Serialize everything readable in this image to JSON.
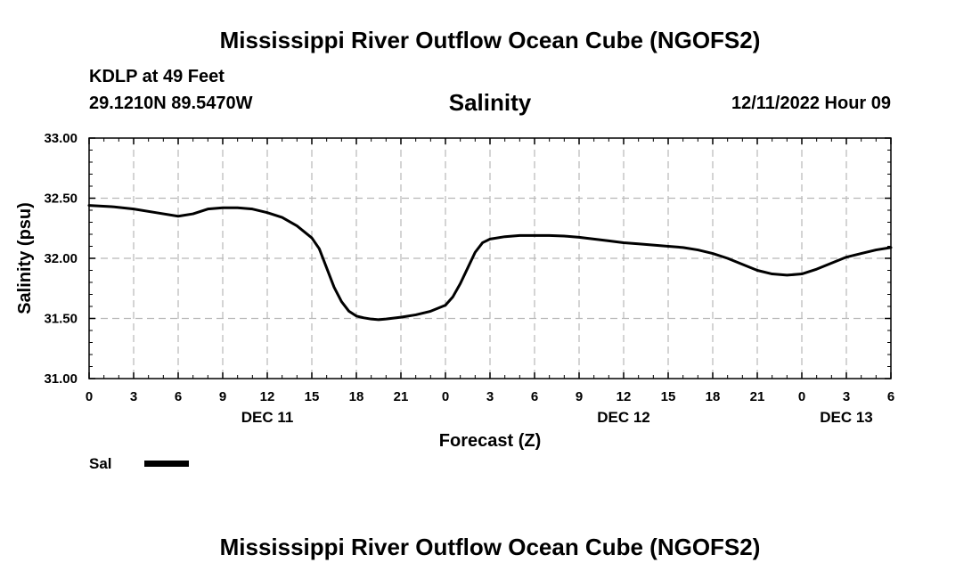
{
  "header": {
    "title": "Mississippi River Outflow Ocean Cube (NGOFS2)",
    "station": "KDLP at 49 Feet",
    "coordinates": "29.1210N  89.5470W",
    "variable_title": "Salinity",
    "datetime": "12/11/2022 Hour 09"
  },
  "footer": {
    "title": "Mississippi River Outflow Ocean Cube (NGOFS2)"
  },
  "legend": {
    "label": "Sal"
  },
  "chart_data": {
    "type": "line",
    "title": "Salinity",
    "xlabel": "Forecast (Z)",
    "ylabel": "Salinity (psu)",
    "ylim": [
      31.0,
      33.0
    ],
    "xlim": [
      0,
      54
    ],
    "y_ticks": [
      "31.00",
      "31.50",
      "32.00",
      "32.50",
      "33.00"
    ],
    "x_ticks": [
      {
        "h": 0,
        "label": "0"
      },
      {
        "h": 3,
        "label": "3"
      },
      {
        "h": 6,
        "label": "6"
      },
      {
        "h": 9,
        "label": "9"
      },
      {
        "h": 12,
        "label": "12"
      },
      {
        "h": 15,
        "label": "15"
      },
      {
        "h": 18,
        "label": "18"
      },
      {
        "h": 21,
        "label": "21"
      },
      {
        "h": 24,
        "label": "0"
      },
      {
        "h": 27,
        "label": "3"
      },
      {
        "h": 30,
        "label": "6"
      },
      {
        "h": 33,
        "label": "9"
      },
      {
        "h": 36,
        "label": "12"
      },
      {
        "h": 39,
        "label": "15"
      },
      {
        "h": 42,
        "label": "18"
      },
      {
        "h": 45,
        "label": "21"
      },
      {
        "h": 48,
        "label": "0"
      },
      {
        "h": 51,
        "label": "3"
      },
      {
        "h": 54,
        "label": "6"
      }
    ],
    "date_labels": [
      {
        "h": 12,
        "label": "DEC 11"
      },
      {
        "h": 36,
        "label": "DEC 12"
      },
      {
        "h": 51,
        "label": "DEC 13"
      }
    ],
    "grid": true,
    "series": [
      {
        "name": "Sal",
        "x": [
          0,
          1.5,
          3,
          4.5,
          6,
          7,
          8,
          9,
          10,
          11,
          12,
          13,
          14,
          15,
          15.5,
          16,
          16.5,
          17,
          17.5,
          18,
          18.5,
          19,
          19.5,
          20,
          21,
          22,
          23,
          24,
          24.5,
          25,
          25.5,
          26,
          26.5,
          27,
          28,
          29,
          30,
          31,
          32,
          33,
          34,
          35,
          36,
          37,
          38,
          39,
          40,
          41,
          42,
          43,
          44,
          45,
          46,
          47,
          48,
          49,
          50,
          51,
          52,
          53,
          54
        ],
        "values": [
          32.44,
          32.43,
          32.41,
          32.38,
          32.35,
          32.37,
          32.41,
          32.42,
          32.42,
          32.41,
          32.38,
          32.34,
          32.27,
          32.17,
          32.08,
          31.92,
          31.76,
          31.64,
          31.56,
          31.52,
          31.505,
          31.495,
          31.49,
          31.495,
          31.51,
          31.53,
          31.56,
          31.61,
          31.68,
          31.79,
          31.92,
          32.05,
          32.13,
          32.16,
          32.18,
          32.19,
          32.19,
          32.19,
          32.185,
          32.175,
          32.16,
          32.145,
          32.13,
          32.12,
          32.11,
          32.1,
          32.09,
          32.07,
          32.04,
          32.0,
          31.95,
          31.9,
          31.87,
          31.86,
          31.87,
          31.91,
          31.96,
          32.01,
          32.04,
          32.07,
          32.09
        ]
      }
    ]
  }
}
